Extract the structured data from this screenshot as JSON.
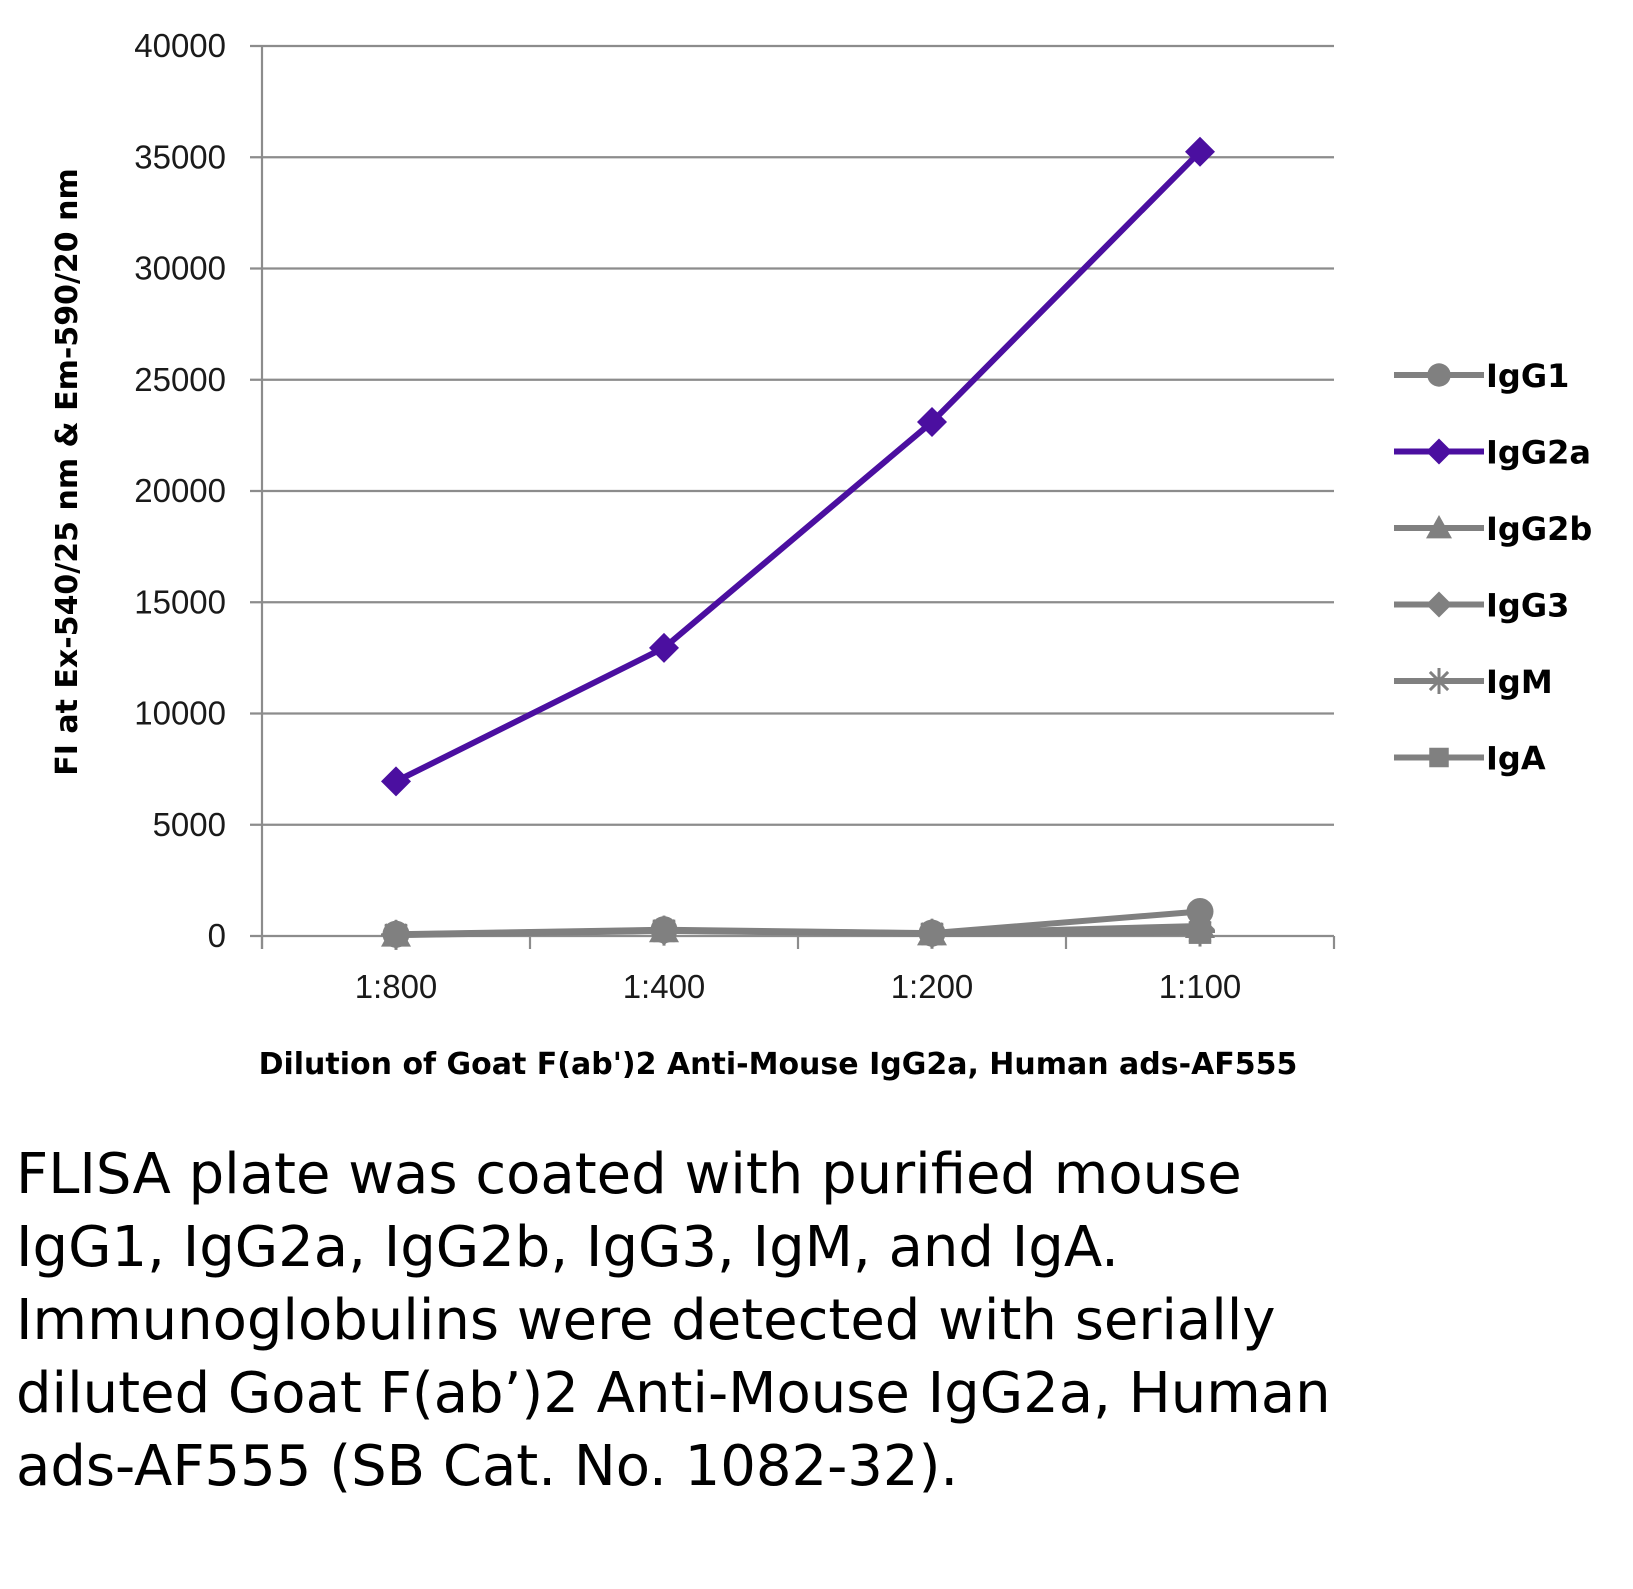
{
  "chart_data": {
    "type": "line",
    "title": "",
    "xlabel": "Dilution of Goat F(ab')2 Anti-Mouse IgG2a, Human ads-AF555",
    "ylabel": "FI at Ex-540/25 nm & Em-590/20 nm",
    "categories": [
      "1:800",
      "1:400",
      "1:200",
      "1:100"
    ],
    "ylim": [
      0,
      40000
    ],
    "yticks": [
      "0",
      "5000",
      "10000",
      "15000",
      "20000",
      "25000",
      "30000",
      "35000",
      "40000"
    ],
    "grid": true,
    "legend_position": "right",
    "series": [
      {
        "name": "IgG1",
        "values": [
          80,
          280,
          130,
          1100
        ],
        "marker": "circle",
        "color": "#808080"
      },
      {
        "name": "IgG2a",
        "values": [
          6950,
          12950,
          23100,
          35250
        ],
        "marker": "diamond",
        "color": "#4b0fa0"
      },
      {
        "name": "IgG2b",
        "values": [
          60,
          260,
          120,
          450
        ],
        "marker": "triangle",
        "color": "#808080"
      },
      {
        "name": "IgG3",
        "values": [
          70,
          250,
          110,
          300
        ],
        "marker": "diamond",
        "color": "#808080"
      },
      {
        "name": "IgM",
        "values": [
          50,
          240,
          100,
          200
        ],
        "marker": "star",
        "color": "#808080"
      },
      {
        "name": "IgA",
        "values": [
          40,
          230,
          90,
          150
        ],
        "marker": "square",
        "color": "#808080"
      }
    ]
  },
  "caption": "FLISA plate was coated with purified mouse IgG1, IgG2a, IgG2b, IgG3, IgM, and IgA. Immunoglobulins were detected with serially diluted Goat F(ab’)2 Anti-Mouse IgG2a, Human ads-AF555 (SB Cat. No. 1082-32)."
}
